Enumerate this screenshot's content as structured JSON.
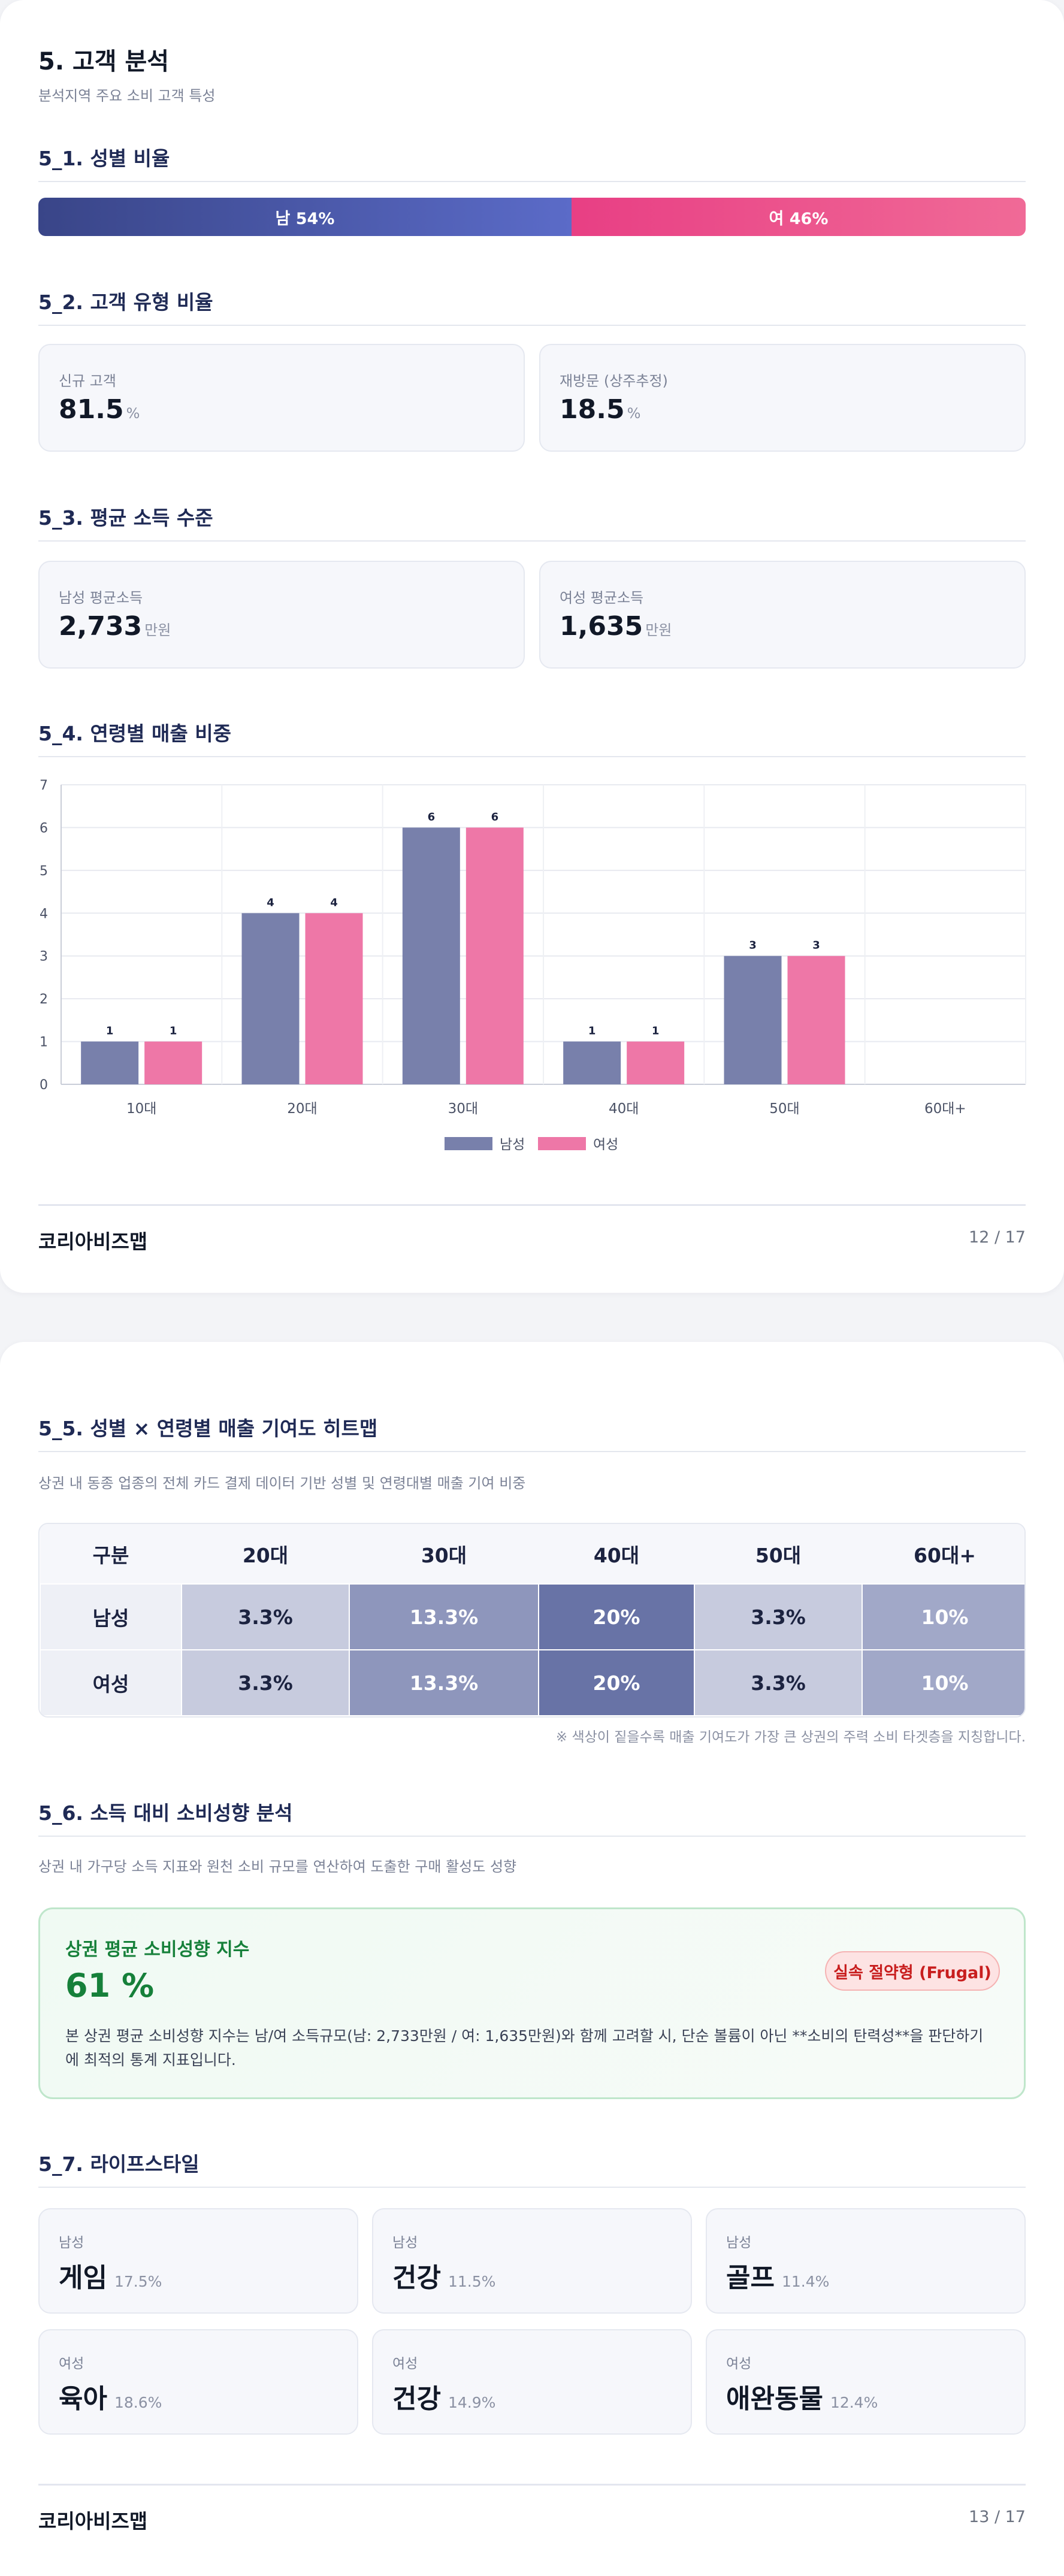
{
  "page12": {
    "title": "5. 고객 분석",
    "subtitle": "분석지역 주요 소비 고객 특성",
    "s1": {
      "heading": "5_1. 성별 비율",
      "male_label": "남 54%",
      "female_label": "여 46%",
      "male_pct": 54,
      "female_pct": 46,
      "colors": {
        "male_start": "#394588",
        "male_end": "#5b6bc8",
        "female_start": "#e83f84",
        "female_end": "#f06a97"
      }
    },
    "s2": {
      "heading": "5_2. 고객 유형 비율",
      "cards": [
        {
          "label": "신규 고객",
          "value": "81.5",
          "unit": "%"
        },
        {
          "label": "재방문 (상주추정)",
          "value": "18.5",
          "unit": "%"
        }
      ]
    },
    "s3": {
      "heading": "5_3. 평균 소득 수준",
      "cards": [
        {
          "label": "남성 평균소득",
          "value": "2,733",
          "unit": "만원"
        },
        {
          "label": "여성 평균소득",
          "value": "1,635",
          "unit": "만원"
        }
      ]
    },
    "s4": {
      "heading": "5_4. 연령별 매출 비중"
    },
    "footer": {
      "brand": "코리아비즈맵",
      "page": "12 / 17"
    }
  },
  "chart_data": {
    "type": "bar",
    "categories": [
      "10대",
      "20대",
      "30대",
      "40대",
      "50대",
      "60대+"
    ],
    "series": [
      {
        "name": "남성",
        "values": [
          1,
          4,
          6,
          1,
          3,
          0
        ],
        "color": "#7880ab"
      },
      {
        "name": "여성",
        "values": [
          1,
          4,
          6,
          1,
          3,
          0
        ],
        "color": "#ee77a7"
      }
    ],
    "data_labels": [
      [
        "1",
        "4",
        "6",
        "1",
        "3",
        ""
      ],
      [
        "1",
        "4",
        "6",
        "1",
        "3",
        ""
      ]
    ],
    "ylim": [
      0,
      7
    ],
    "yticks": [
      "0",
      "1",
      "2",
      "3",
      "4",
      "5",
      "6",
      "7"
    ],
    "grid": true,
    "legend_position": "bottom-center",
    "title": "",
    "xlabel": "",
    "ylabel": ""
  },
  "page13": {
    "s5": {
      "heading": "5_5. 성별 × 연령별 매출 기여도 히트맵",
      "desc": "상권 내 동종 업종의 전체 카드 결제 데이터 기반 성별 및 연령대별 매출 기여 비중",
      "header": [
        "구분",
        "20대",
        "30대",
        "40대",
        "50대",
        "60대+"
      ],
      "rows": [
        {
          "label": "남성",
          "cells": [
            "3.3%",
            "13.3%",
            "20%",
            "3.3%",
            "10%"
          ],
          "levels": [
            3.3,
            13.3,
            20,
            3.3,
            10
          ]
        },
        {
          "label": "여성",
          "cells": [
            "3.3%",
            "13.3%",
            "20%",
            "3.3%",
            "10%"
          ],
          "levels": [
            3.3,
            13.3,
            20,
            3.3,
            10
          ]
        }
      ],
      "note": "※ 색상이 짙을수록 매출 기여도가 가장 큰 상권의 주력 소비 타겟층을 지칭합니다."
    },
    "s6": {
      "heading": "5_6. 소득 대비 소비성향 분석",
      "desc": "상권 내 가구당 소득 지표와 원천 소비 규모를 연산하여 도출한 구매 활성도 성향",
      "box_title": "상권 평균 소비성향 지수",
      "box_value": "61 %",
      "tag": "실속 절약형 (Frugal)",
      "body_line1": "본 상권 평균 소비성향 지수는 남/여 소득규모(남: 2,733만원 / 여: 1,635만원)와 함께 고려할 시, 단순 볼륨이 아닌 **소비의 탄력성**을 판단하기",
      "body_line2": "에 최적의 통계 지표입니다."
    },
    "s7": {
      "heading": "5_7. 라이프스타일",
      "cards": [
        {
          "gender": "남성",
          "name": "게임",
          "pct": "17.5%"
        },
        {
          "gender": "남성",
          "name": "건강",
          "pct": "11.5%"
        },
        {
          "gender": "남성",
          "name": "골프",
          "pct": "11.4%"
        },
        {
          "gender": "여성",
          "name": "육아",
          "pct": "18.6%"
        },
        {
          "gender": "여성",
          "name": "건강",
          "pct": "14.9%"
        },
        {
          "gender": "여성",
          "name": "애완동물",
          "pct": "12.4%"
        }
      ]
    },
    "footer": {
      "brand": "코리아비즈맵",
      "page": "13 / 17"
    }
  }
}
